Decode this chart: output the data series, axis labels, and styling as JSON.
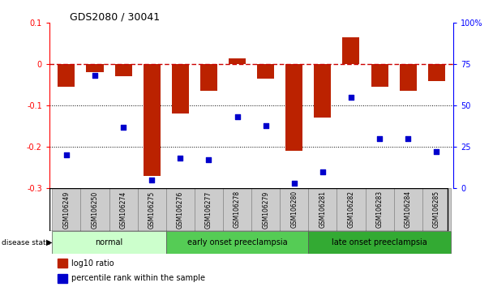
{
  "title": "GDS2080 / 30041",
  "samples": [
    "GSM106249",
    "GSM106250",
    "GSM106274",
    "GSM106275",
    "GSM106276",
    "GSM106277",
    "GSM106278",
    "GSM106279",
    "GSM106280",
    "GSM106281",
    "GSM106282",
    "GSM106283",
    "GSM106284",
    "GSM106285"
  ],
  "log10_ratio": [
    -0.055,
    -0.02,
    -0.03,
    -0.27,
    -0.12,
    -0.065,
    0.015,
    -0.035,
    -0.21,
    -0.13,
    0.065,
    -0.055,
    -0.065,
    -0.04
  ],
  "percentile_rank": [
    20,
    68,
    37,
    5,
    18,
    17,
    43,
    38,
    3,
    10,
    55,
    30,
    30,
    22
  ],
  "ylim_left": [
    -0.3,
    0.1
  ],
  "ylim_right": [
    0,
    100
  ],
  "bar_color": "#bb2200",
  "dot_color": "#0000cc",
  "zero_line_color": "#cc0000",
  "grid_color": "#000000",
  "bg_color": "#ffffff",
  "disease_groups": [
    {
      "label": "normal",
      "start": 0,
      "end": 3,
      "color": "#ccffcc"
    },
    {
      "label": "early onset preeclampsia",
      "start": 4,
      "end": 8,
      "color": "#55cc55"
    },
    {
      "label": "late onset preeclampsia",
      "start": 9,
      "end": 13,
      "color": "#33aa33"
    }
  ],
  "tick_bg_color": "#cccccc",
  "legend_red_label": "log10 ratio",
  "legend_blue_label": "percentile rank within the sample"
}
